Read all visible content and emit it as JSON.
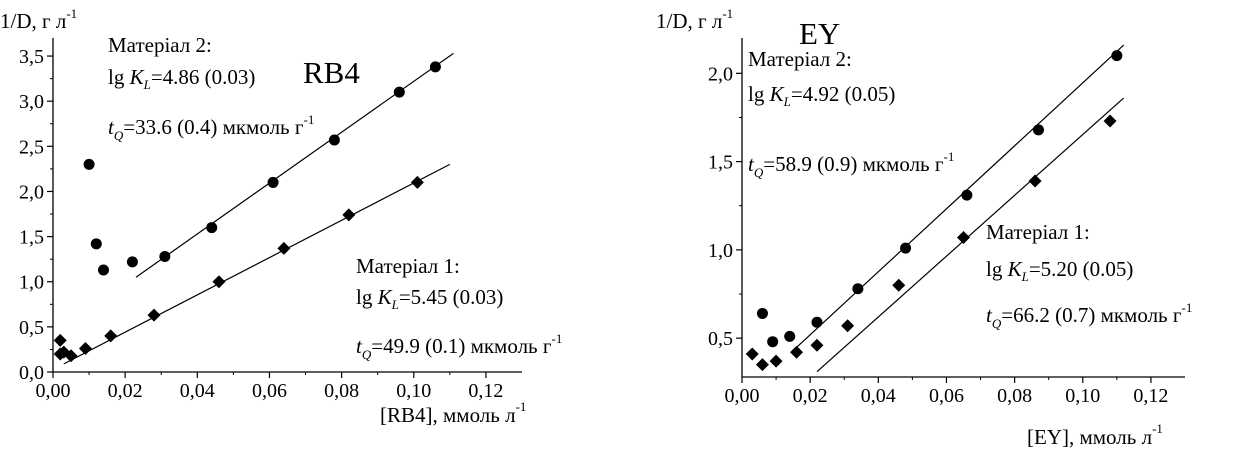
{
  "chart_data": [
    {
      "type": "scatter",
      "title": "RB4",
      "xlabel": "[RB4], ммоль л",
      "xlabel_sup": "-1",
      "ylabel": "1/D, г л",
      "ylabel_sup": "-1",
      "xlim": [
        0,
        0.13
      ],
      "ylim": [
        0,
        3.7
      ],
      "xticks": [
        0,
        0.02,
        0.04,
        0.06,
        0.08,
        0.1,
        0.12
      ],
      "xtick_labels": [
        "0,00",
        "0,02",
        "0,04",
        "0,06",
        "0,08",
        "0,10",
        "0,12"
      ],
      "yticks": [
        0,
        0.5,
        1.0,
        1.5,
        2.0,
        2.5,
        3.0,
        3.5
      ],
      "ytick_labels": [
        "0,0",
        "0,5",
        "1,0",
        "1,5",
        "2,0",
        "2,5",
        "3,0",
        "3,5"
      ],
      "series": [
        {
          "name": "Матеріал 2",
          "marker": "circle",
          "points": [
            [
              0.01,
              2.3
            ],
            [
              0.012,
              1.42
            ],
            [
              0.014,
              1.13
            ],
            [
              0.022,
              1.22
            ],
            [
              0.031,
              1.28
            ],
            [
              0.044,
              1.6
            ],
            [
              0.061,
              2.1
            ],
            [
              0.078,
              2.57
            ],
            [
              0.096,
              3.1
            ],
            [
              0.106,
              3.38
            ]
          ],
          "fit": [
            [
              0.023,
              1.05
            ],
            [
              0.111,
              3.53
            ]
          ]
        },
        {
          "name": "Матеріал 1",
          "marker": "diamond",
          "points": [
            [
              0.002,
              0.35
            ],
            [
              0.002,
              0.2
            ],
            [
              0.003,
              0.22
            ],
            [
              0.005,
              0.18
            ],
            [
              0.009,
              0.26
            ],
            [
              0.016,
              0.4
            ],
            [
              0.028,
              0.63
            ],
            [
              0.046,
              1.0
            ],
            [
              0.064,
              1.37
            ],
            [
              0.082,
              1.74
            ],
            [
              0.101,
              2.1
            ]
          ],
          "fit": [
            [
              0.003,
              0.09
            ],
            [
              0.11,
              2.3
            ]
          ]
        }
      ],
      "annotations": {
        "s2_name": "Матеріал 2:",
        "s2_k_pre": "lg ",
        "s2_k_sym": "K",
        "s2_k_sub": "L",
        "s2_k_val": "=4.86 (0.03)",
        "s2_t_sym": "t",
        "s2_t_sub": "Q",
        "s2_t_val": "=33.6 (0.4) мкмоль г",
        "s2_t_sup": "-1",
        "s1_name": "Матеріал 1:",
        "s1_k_pre": "lg ",
        "s1_k_sym": "K",
        "s1_k_sub": "L",
        "s1_k_val": "=5.45 (0.03)",
        "s1_t_sym": "t",
        "s1_t_sub": "Q",
        "s1_t_val": "=49.9 (0.1) мкмоль г",
        "s1_t_sup": "-1"
      }
    },
    {
      "type": "scatter",
      "title": "EY",
      "xlabel": "[EY], ммоль л",
      "xlabel_sup": "-1",
      "ylabel": "1/D, г л",
      "ylabel_sup": "-1",
      "xlim": [
        0,
        0.13
      ],
      "ylim": [
        0.28,
        2.2
      ],
      "xticks": [
        0,
        0.02,
        0.04,
        0.06,
        0.08,
        0.1,
        0.12
      ],
      "xtick_labels": [
        "0,00",
        "0,02",
        "0,04",
        "0,06",
        "0,08",
        "0,10",
        "0,12"
      ],
      "yticks": [
        0.5,
        1.0,
        1.5,
        2.0
      ],
      "ytick_labels": [
        "0,5",
        "1,0",
        "1,5",
        "2,0"
      ],
      "series": [
        {
          "name": "Матеріал 2",
          "marker": "circle",
          "points": [
            [
              0.006,
              0.64
            ],
            [
              0.009,
              0.48
            ],
            [
              0.014,
              0.51
            ],
            [
              0.022,
              0.59
            ],
            [
              0.034,
              0.78
            ],
            [
              0.048,
              1.01
            ],
            [
              0.066,
              1.31
            ],
            [
              0.087,
              1.68
            ],
            [
              0.11,
              2.1
            ]
          ],
          "fit": [
            [
              0.015,
              0.43
            ],
            [
              0.112,
              2.16
            ]
          ]
        },
        {
          "name": "Матеріал 1",
          "marker": "diamond",
          "points": [
            [
              0.003,
              0.41
            ],
            [
              0.006,
              0.35
            ],
            [
              0.01,
              0.37
            ],
            [
              0.016,
              0.42
            ],
            [
              0.022,
              0.46
            ],
            [
              0.031,
              0.57
            ],
            [
              0.046,
              0.8
            ],
            [
              0.065,
              1.07
            ],
            [
              0.086,
              1.39
            ],
            [
              0.108,
              1.73
            ]
          ],
          "fit": [
            [
              0.022,
              0.31
            ],
            [
              0.112,
              1.86
            ]
          ]
        }
      ],
      "annotations": {
        "s2_name": "Матеріал 2:",
        "s2_k_pre": "lg ",
        "s2_k_sym": "K",
        "s2_k_sub": "L",
        "s2_k_val": "=4.92 (0.05)",
        "s2_t_sym": "t",
        "s2_t_sub": "Q",
        "s2_t_val": "=58.9 (0.9) мкмоль г",
        "s2_t_sup": "-1",
        "s1_name": "Матеріал 1:",
        "s1_k_pre": "lg ",
        "s1_k_sym": "K",
        "s1_k_sub": "L",
        "s1_k_val": "=5.20 (0.05)",
        "s1_t_sym": "t",
        "s1_t_sub": "Q",
        "s1_t_val": "=66.2 (0.7) мкмоль г",
        "s1_t_sup": "-1"
      }
    }
  ]
}
